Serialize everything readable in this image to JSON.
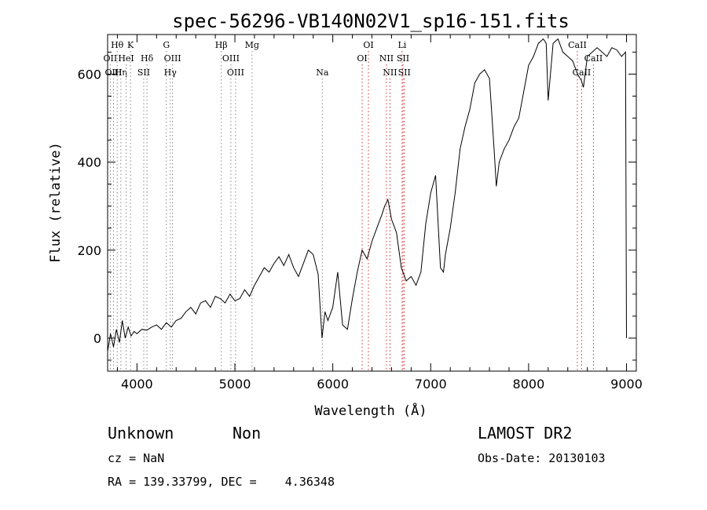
{
  "chart_data": {
    "type": "line",
    "title": "spec-56296-VB140N02V1_sp16-151.fits",
    "xlabel": "Wavelength (Å)",
    "ylabel": "Flux (relative)",
    "xlim": [
      3700,
      9100
    ],
    "ylim": [
      -75,
      690
    ],
    "xticks": [
      4000,
      5000,
      6000,
      7000,
      8000,
      9000
    ],
    "xtick_labels": [
      "4000",
      "5000",
      "6000",
      "7000",
      "8000",
      "9000"
    ],
    "yticks": [
      0,
      200,
      400,
      600
    ],
    "ytick_labels": [
      "0",
      "200",
      "400",
      "600"
    ],
    "grid": false,
    "series": [
      {
        "x": [
          3700,
          3730,
          3760,
          3790,
          3820,
          3850,
          3880,
          3910,
          3940,
          3970,
          4000,
          4050,
          4100,
          4150,
          4200,
          4250,
          4300,
          4350,
          4400,
          4450,
          4500,
          4550,
          4600,
          4650,
          4700,
          4750,
          4800,
          4850,
          4900,
          4950,
          5000,
          5050,
          5100,
          5150,
          5200,
          5250,
          5300,
          5350,
          5400,
          5450,
          5500,
          5550,
          5600,
          5650,
          5700,
          5750,
          5800,
          5850,
          5890,
          5920,
          5950,
          6000,
          6050,
          6100,
          6150,
          6200,
          6250,
          6300,
          6350,
          6400,
          6450,
          6500,
          6530,
          6563,
          6600,
          6650,
          6700,
          6750,
          6800,
          6850,
          6900,
          6950,
          7000,
          7050,
          7100,
          7130,
          7150,
          7200,
          7250,
          7300,
          7350,
          7400,
          7450,
          7500,
          7550,
          7600,
          7650,
          7670,
          7700,
          7750,
          7800,
          7850,
          7900,
          7950,
          8000,
          8050,
          8100,
          8150,
          8180,
          8200,
          8250,
          8300,
          8350,
          8400,
          8450,
          8500,
          8540,
          8560,
          8600,
          8650,
          8700,
          8750,
          8800,
          8850,
          8900,
          8950,
          8990,
          9000
        ],
        "y": [
          -30,
          10,
          -20,
          20,
          -10,
          40,
          0,
          25,
          5,
          15,
          10,
          20,
          18,
          25,
          30,
          20,
          35,
          25,
          40,
          45,
          60,
          70,
          55,
          80,
          85,
          70,
          95,
          90,
          80,
          100,
          85,
          90,
          110,
          95,
          120,
          140,
          160,
          150,
          170,
          185,
          165,
          190,
          160,
          140,
          170,
          200,
          190,
          145,
          0,
          60,
          40,
          70,
          150,
          30,
          20,
          90,
          150,
          200,
          180,
          220,
          250,
          280,
          300,
          315,
          270,
          240,
          160,
          130,
          140,
          120,
          150,
          260,
          330,
          370,
          160,
          150,
          190,
          250,
          330,
          430,
          480,
          520,
          580,
          600,
          610,
          590,
          420,
          345,
          400,
          430,
          450,
          480,
          500,
          560,
          620,
          640,
          670,
          680,
          670,
          540,
          670,
          680,
          650,
          640,
          630,
          600,
          585,
          570,
          640,
          650,
          660,
          650,
          640,
          660,
          655,
          640,
          650,
          0
        ]
      }
    ],
    "emission_lines": [
      {
        "name": "Hθ",
        "wavelength": 3798,
        "row": 1,
        "color": "#888888"
      },
      {
        "name": "OII",
        "wavelength": 3727,
        "row": 2,
        "color": "#888888"
      },
      {
        "name": "OIII",
        "wavelength": 3760,
        "row": 3,
        "color": "#888888"
      },
      {
        "name": "Hη",
        "wavelength": 3835,
        "row": 3,
        "color": "#888888"
      },
      {
        "name": "HeI",
        "wavelength": 3889,
        "row": 2,
        "color": "#888888"
      },
      {
        "name": "K",
        "wavelength": 3934,
        "row": 1,
        "color": "#888888"
      },
      {
        "name": "Hδ",
        "wavelength": 4102,
        "row": 2,
        "color": "#888888"
      },
      {
        "name": "SII",
        "wavelength": 4069,
        "row": 3,
        "color": "#888888"
      },
      {
        "name": "G",
        "wavelength": 4300,
        "row": 1,
        "color": "#888888"
      },
      {
        "name": "OIII",
        "wavelength": 4363,
        "row": 2,
        "color": "#888888"
      },
      {
        "name": "Hγ",
        "wavelength": 4340,
        "row": 3,
        "color": "#888888"
      },
      {
        "name": "Hβ",
        "wavelength": 4861,
        "row": 1,
        "color": "#888888"
      },
      {
        "name": "OIII",
        "wavelength": 4959,
        "row": 2,
        "color": "#888888"
      },
      {
        "name": "OIII",
        "wavelength": 5007,
        "row": 3,
        "color": "#888888"
      },
      {
        "name": "Mg",
        "wavelength": 5175,
        "row": 1,
        "color": "#888888"
      },
      {
        "name": "Na",
        "wavelength": 5893,
        "row": 3,
        "color": "#888888"
      },
      {
        "name": "OI",
        "wavelength": 6300,
        "row": 2,
        "color": "#cc3333"
      },
      {
        "name": "OI",
        "wavelength": 6364,
        "row": 1,
        "color": "#cc3333"
      },
      {
        "name": "NII",
        "wavelength": 6548,
        "row": 2,
        "color": "#cc3333"
      },
      {
        "name": "NII",
        "wavelength": 6584,
        "row": 3,
        "color": "#cc3333"
      },
      {
        "name": "Li",
        "wavelength": 6708,
        "row": 1,
        "color": "#cc3333"
      },
      {
        "name": "SII",
        "wavelength": 6717,
        "row": 2,
        "color": "#cc3333"
      },
      {
        "name": "SII",
        "wavelength": 6731,
        "row": 3,
        "color": "#cc3333"
      },
      {
        "name": "CaII",
        "wavelength": 8498,
        "row": 1,
        "color": "#cc3333"
      },
      {
        "name": "CaII",
        "wavelength": 8542,
        "row": 3,
        "color": "#cc3333"
      },
      {
        "name": "CaII",
        "wavelength": 8662,
        "row": 2,
        "color": "#cc3333"
      }
    ]
  },
  "info": {
    "class": "Unknown",
    "subclass": "Non",
    "survey": "LAMOST DR2",
    "cz": "cz = NaN",
    "obs_date": "Obs-Date: 20130103",
    "coords": "RA = 139.33799, DEC =    4.36348"
  }
}
